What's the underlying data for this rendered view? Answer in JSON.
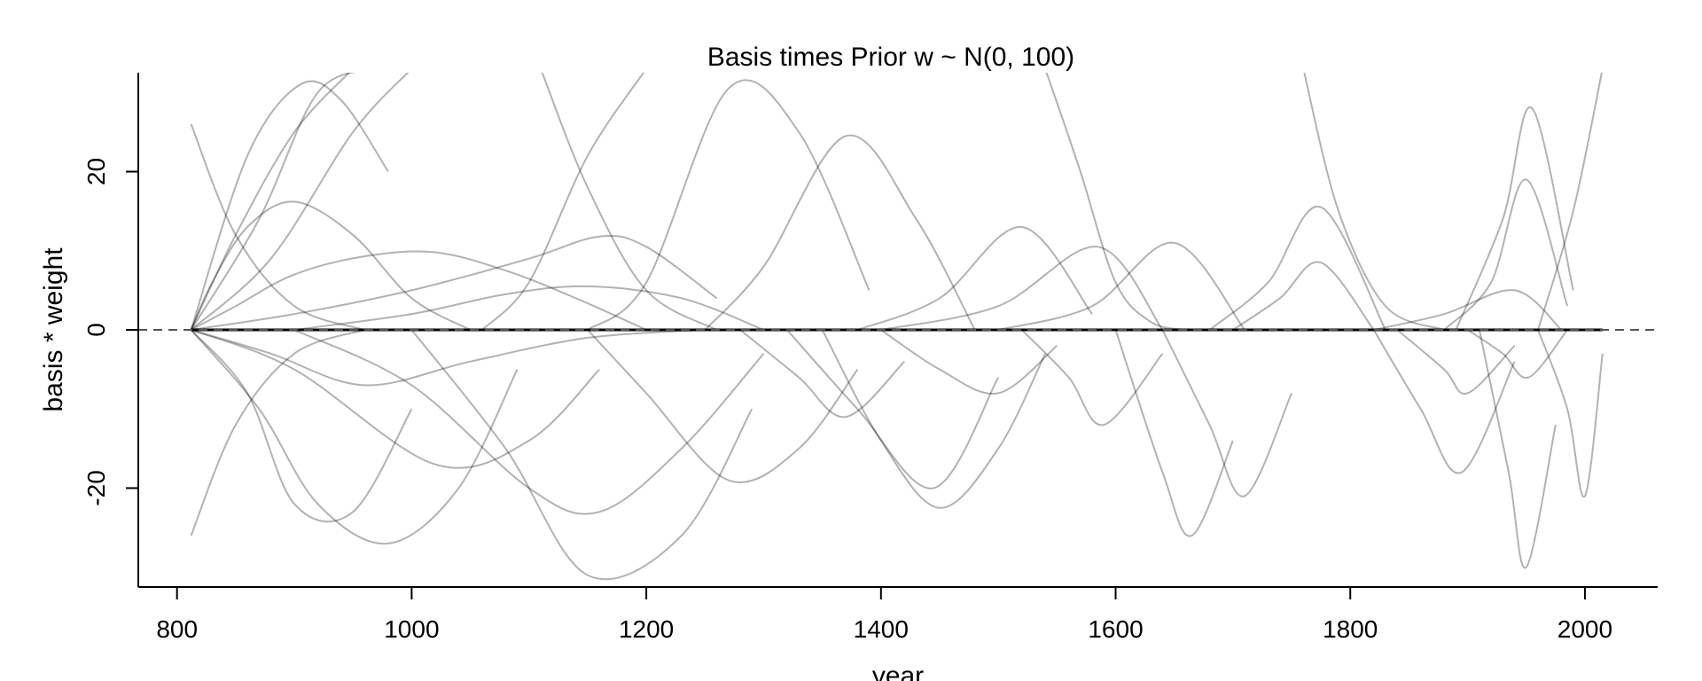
{
  "chart_data": {
    "type": "line",
    "title": "Basis times Prior w ~ N(0, 100)",
    "xlabel": "year",
    "ylabel": "basis * weight",
    "xlim": [
      767,
      2062
    ],
    "ylim": [
      -32.5,
      32.5
    ],
    "xticks": [
      800,
      1000,
      1200,
      1400,
      1600,
      1800,
      2000
    ],
    "yticks": [
      -20,
      0,
      20
    ],
    "xtick_labels": [
      "800",
      "1000",
      "1200",
      "1400",
      "1600",
      "1800",
      "2000"
    ],
    "ytick_labels": [
      "-20",
      "0",
      "20"
    ],
    "reference_line": {
      "y": 0,
      "style": "dashed"
    },
    "x_range": [
      812,
      2015
    ],
    "line_color": "#000000",
    "line_opacity": 0.3,
    "series_note_count": 50,
    "curves": [
      {
        "x": [
          812,
          830,
          860,
          900,
          950,
          1000,
          1050
        ],
        "y": [
          0,
          6,
          13,
          16.2,
          12,
          4,
          0
        ]
      },
      {
        "x": [
          812,
          850,
          900,
          960,
          1020,
          1080,
          1140,
          1200
        ],
        "y": [
          0,
          3,
          7,
          9.3,
          9.8,
          7.5,
          4,
          0
        ]
      },
      {
        "x": [
          812,
          900,
          1000,
          1100,
          1160,
          1200,
          1260
        ],
        "y": [
          0,
          2,
          5,
          9,
          11.8,
          10.5,
          4
        ]
      },
      {
        "x": [
          900,
          1000,
          1080,
          1150,
          1230,
          1300
        ],
        "y": [
          0,
          2,
          4.5,
          5.5,
          4,
          0
        ]
      },
      {
        "x": [
          812,
          850,
          900,
          950
        ],
        "y": [
          0,
          12,
          25,
          33
        ]
      },
      {
        "x": [
          812,
          870,
          920,
          970
        ],
        "y": [
          0,
          14,
          30,
          33
        ]
      },
      {
        "x": [
          812,
          880,
          950,
          1000
        ],
        "y": [
          0,
          9,
          25,
          33
        ]
      },
      {
        "x": [
          812,
          860,
          905,
          940,
          980
        ],
        "y": [
          0,
          22,
          31,
          29,
          20
        ]
      },
      {
        "x": [
          1060,
          1100,
          1150,
          1200
        ],
        "y": [
          0,
          6,
          22,
          33
        ]
      },
      {
        "x": [
          1150,
          1200,
          1270,
          1330,
          1390
        ],
        "y": [
          0,
          6,
          30.5,
          25,
          5
        ]
      },
      {
        "x": [
          1250,
          1300,
          1370,
          1430,
          1480
        ],
        "y": [
          0,
          8,
          24.5,
          14,
          0
        ]
      },
      {
        "x": [
          1380,
          1450,
          1520,
          1580
        ],
        "y": [
          0,
          4,
          13,
          2
        ]
      },
      {
        "x": [
          1400,
          1500,
          1585,
          1640
        ],
        "y": [
          0,
          3,
          10.5,
          0
        ]
      },
      {
        "x": [
          1500,
          1580,
          1650,
          1710
        ],
        "y": [
          0,
          3,
          11,
          0
        ]
      },
      {
        "x": [
          1700,
          1740,
          1775,
          1820
        ],
        "y": [
          0,
          4,
          8.5,
          0
        ]
      },
      {
        "x": [
          1680,
          1730,
          1775,
          1830
        ],
        "y": [
          0,
          6,
          15.5,
          0
        ]
      },
      {
        "x": [
          1820,
          1880,
          1940,
          1980
        ],
        "y": [
          0,
          2,
          5,
          0
        ]
      },
      {
        "x": [
          1880,
          1920,
          1950,
          1985
        ],
        "y": [
          0,
          6,
          19,
          3
        ]
      },
      {
        "x": [
          1890,
          1930,
          1955,
          1990
        ],
        "y": [
          0,
          14,
          28,
          5
        ]
      },
      {
        "x": [
          1960,
          1990,
          2015
        ],
        "y": [
          0,
          15,
          33
        ]
      },
      {
        "x": [
          812,
          860,
          900,
          950,
          1000
        ],
        "y": [
          0,
          -8,
          -22,
          -23,
          -10
        ]
      },
      {
        "x": [
          812,
          870,
          920,
          980,
          1040,
          1090
        ],
        "y": [
          0,
          -10,
          -22,
          -27,
          -20,
          -5
        ]
      },
      {
        "x": [
          812,
          900,
          1020,
          1100,
          1160
        ],
        "y": [
          0,
          -5,
          -17,
          -14,
          -5
        ]
      },
      {
        "x": [
          812,
          880,
          960,
          1050,
          1150,
          1250
        ],
        "y": [
          0,
          -3,
          -7,
          -4,
          -1,
          0
        ]
      },
      {
        "x": [
          900,
          1000,
          1100,
          1160,
          1230,
          1300
        ],
        "y": [
          0,
          -7,
          -20,
          -23,
          -15,
          -3
        ]
      },
      {
        "x": [
          1000,
          1080,
          1150,
          1230,
          1290
        ],
        "y": [
          0,
          -15,
          -31,
          -26,
          -10
        ]
      },
      {
        "x": [
          1150,
          1200,
          1270,
          1330,
          1380
        ],
        "y": [
          0,
          -8,
          -19,
          -15,
          -5
        ]
      },
      {
        "x": [
          1280,
          1330,
          1370,
          1420
        ],
        "y": [
          0,
          -6,
          -11,
          -4
        ]
      },
      {
        "x": [
          1320,
          1380,
          1445,
          1500
        ],
        "y": [
          0,
          -10,
          -20,
          -6
        ]
      },
      {
        "x": [
          1350,
          1400,
          1450,
          1500,
          1540
        ],
        "y": [
          0,
          -14,
          -22.5,
          -15,
          -3
        ]
      },
      {
        "x": [
          1400,
          1450,
          1500,
          1550
        ],
        "y": [
          0,
          -5,
          -8,
          -2
        ]
      },
      {
        "x": [
          1520,
          1560,
          1590,
          1640
        ],
        "y": [
          0,
          -6,
          -12,
          -3
        ]
      },
      {
        "x": [
          1600,
          1640,
          1665,
          1700
        ],
        "y": [
          0,
          -18,
          -26,
          -14
        ]
      },
      {
        "x": [
          1640,
          1680,
          1710,
          1750
        ],
        "y": [
          0,
          -12,
          -21,
          -8
        ]
      },
      {
        "x": [
          1820,
          1860,
          1895,
          1940
        ],
        "y": [
          0,
          -10,
          -18,
          -4
        ]
      },
      {
        "x": [
          1840,
          1880,
          1900,
          1940
        ],
        "y": [
          0,
          -5,
          -8,
          -2
        ]
      },
      {
        "x": [
          1900,
          1930,
          1952,
          1985
        ],
        "y": [
          0,
          -3,
          -6,
          0
        ]
      },
      {
        "x": [
          1910,
          1935,
          1950,
          1975
        ],
        "y": [
          0,
          -18,
          -30,
          -12
        ]
      },
      {
        "x": [
          1960,
          1985,
          2000,
          2015
        ],
        "y": [
          0,
          -10,
          -21,
          -3
        ]
      },
      {
        "x": [
          1540,
          1570,
          1600,
          1630,
          1660
        ],
        "y": [
          33,
          20,
          6,
          1,
          0
        ]
      },
      {
        "x": [
          1110,
          1150,
          1200,
          1260
        ],
        "y": [
          33,
          18,
          5,
          0
        ]
      },
      {
        "x": [
          1760,
          1790,
          1830,
          1880
        ],
        "y": [
          33,
          15,
          3,
          0
        ]
      },
      {
        "x": [
          812,
          850,
          900,
          960
        ],
        "y": [
          26,
          12,
          3,
          0
        ]
      },
      {
        "x": [
          812,
          850,
          900,
          960
        ],
        "y": [
          -26,
          -12,
          -3,
          0
        ]
      }
    ]
  }
}
